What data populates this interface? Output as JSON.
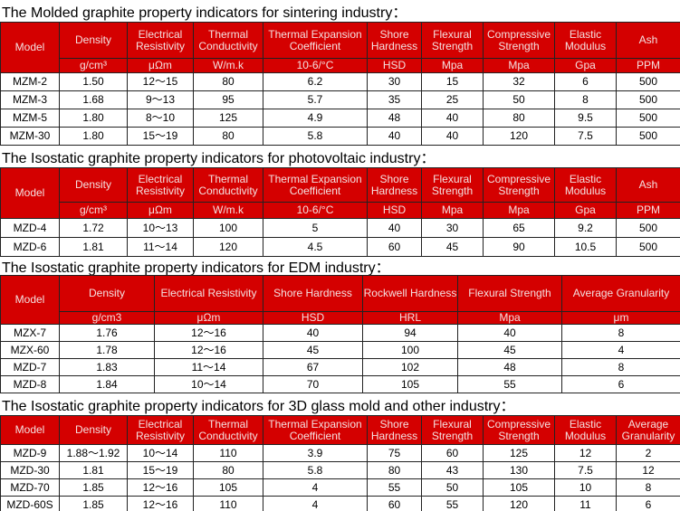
{
  "sections": [
    {
      "title": "The Molded graphite property indicators for sintering industry：",
      "header": [
        "Model",
        "Density",
        "Electrical Resistivity",
        "Thermal Conductivity",
        "Thermal Expansion Coefficient",
        "Shore Hardness",
        "Flexural Strength",
        "Compressive Strength",
        "Elastic Modulus",
        "Ash"
      ],
      "units": [
        "g/cm³",
        "μΩm",
        "W/m.k",
        "10-6/°C",
        "HSD",
        "Mpa",
        "Mpa",
        "Gpa",
        "PPM"
      ],
      "rows": [
        [
          "MZM-2",
          "1.50",
          "12～15",
          "80",
          "6.2",
          "30",
          "15",
          "32",
          "6",
          "500"
        ],
        [
          "MZM-3",
          "1.68",
          "9～13",
          "95",
          "5.7",
          "35",
          "25",
          "50",
          "8",
          "500"
        ],
        [
          "MZM-5",
          "1.80",
          "8～10",
          "125",
          "4.9",
          "48",
          "40",
          "80",
          "9.5",
          "500"
        ],
        [
          "MZM-30",
          "1.80",
          "15～19",
          "80",
          "5.8",
          "40",
          "40",
          "120",
          "7.5",
          "500"
        ]
      ]
    },
    {
      "title": "The Isostatic graphite property indicators for photovoltaic industry：",
      "header": [
        "Model",
        "Density",
        "Electrical Resistivity",
        "Thermal Conductivity",
        "Thermal Expansion Coefficient",
        "Shore Hardness",
        "Flexural Strength",
        "Compressive Strength",
        "Elastic Modulus",
        "Ash"
      ],
      "units": [
        "g/cm³",
        "μΩm",
        "W/m.k",
        "10-6/°C",
        "HSD",
        "Mpa",
        "Mpa",
        "Gpa",
        "PPM"
      ],
      "rows": [
        [
          "MZD-4",
          "1.72",
          "10～13",
          "100",
          "5",
          "40",
          "30",
          "65",
          "9.2",
          "500"
        ],
        [
          "MZD-6",
          "1.81",
          "11～14",
          "120",
          "4.5",
          "60",
          "45",
          "90",
          "10.5",
          "500"
        ]
      ]
    },
    {
      "title": "The Isostatic graphite property indicators for EDM industry：",
      "header": [
        "Model",
        "Density",
        "Electrical Resistivity",
        "Shore Hardness",
        "Rockwell Hardness",
        "Flexural Strength",
        "Average Granularity"
      ],
      "units": [
        "g/cm3",
        "μΩm",
        "HSD",
        "HRL",
        "Mpa",
        "μm"
      ],
      "rows": [
        [
          "MZX-7",
          "1.76",
          "12～16",
          "40",
          "94",
          "40",
          "8"
        ],
        [
          "MZX-60",
          "1.78",
          "12～16",
          "45",
          "100",
          "45",
          "4"
        ],
        [
          "MZD-7",
          "1.83",
          "11～14",
          "67",
          "102",
          "48",
          "8"
        ],
        [
          "MZD-8",
          "1.84",
          "10～14",
          "70",
          "105",
          "55",
          "6"
        ]
      ]
    },
    {
      "title": "The Isostatic graphite property indicators for 3D glass mold and other industry：",
      "header": [
        "Model",
        "Density",
        "Electrical Resistivity",
        "Thermal Conductivity",
        "Thermal Expansion Coefficient",
        "Shore Hardness",
        "Flexural Strength",
        "Compressive Strength",
        "Elastic Modulus",
        "Average Granularity"
      ],
      "rows": [
        [
          "MZD-9",
          "1.88～1.92",
          "10～14",
          "110",
          "3.9",
          "75",
          "60",
          "125",
          "12",
          "2"
        ],
        [
          "MZD-30",
          "1.81",
          "15～19",
          "80",
          "5.8",
          "80",
          "43",
          "130",
          "7.5",
          "12"
        ],
        [
          "MZD-70",
          "1.85",
          "12～16",
          "105",
          "4",
          "55",
          "50",
          "105",
          "10",
          "8"
        ],
        [
          "MZD-60S",
          "1.85",
          "12～16",
          "110",
          "4",
          "60",
          "55",
          "120",
          "11",
          "6"
        ]
      ]
    }
  ]
}
